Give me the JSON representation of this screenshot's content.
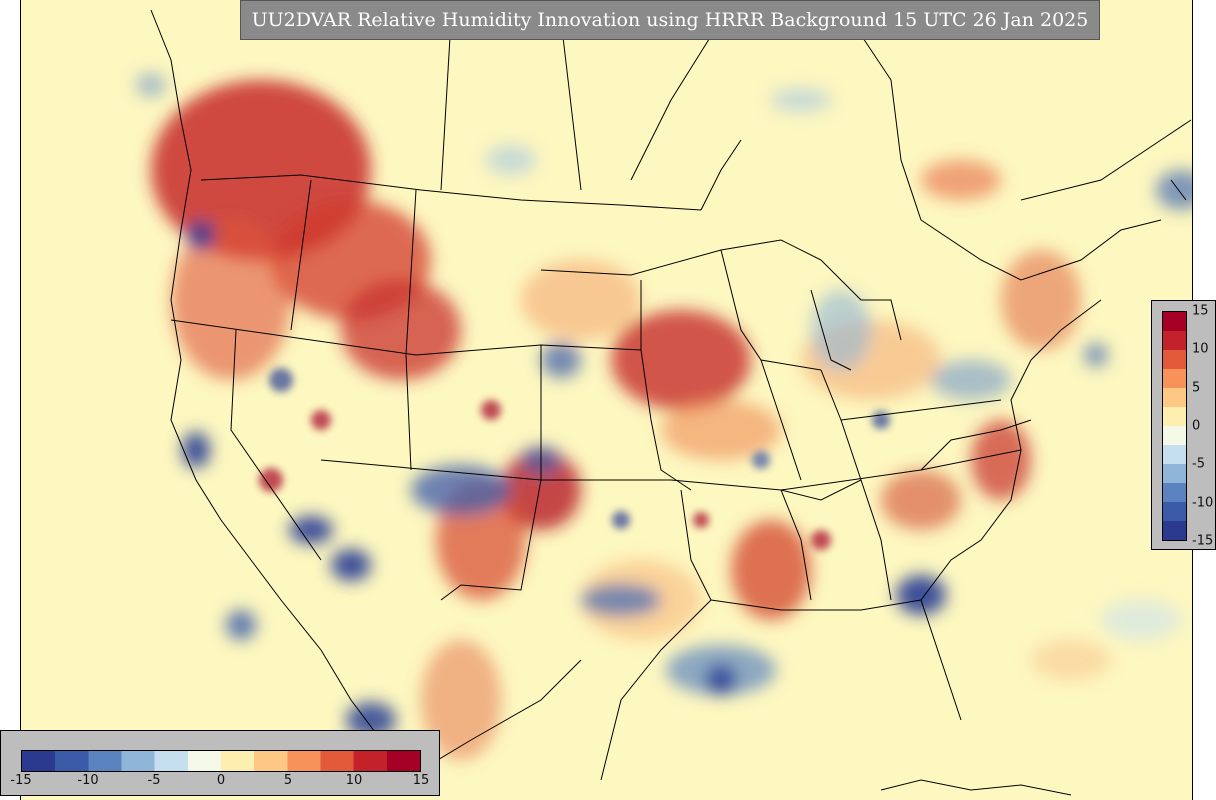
{
  "title": "UU2DVAR Relative Humidity Innovation using HRRR Background 15 UTC 26 Jan 2025",
  "colorbar": {
    "min": -15,
    "max": 15,
    "colors": [
      "#2b3a8f",
      "#3b5ba8",
      "#5a83c0",
      "#8fb5d8",
      "#c6dfee",
      "#f4f9e8",
      "#fdefb0",
      "#fcc884",
      "#f6925a",
      "#e35a3b",
      "#c4222a",
      "#a50026"
    ],
    "horizontal_ticks": [
      "-15",
      "-10",
      "-5",
      "0",
      "5",
      "10",
      "15"
    ],
    "vertical_ticks": [
      "15",
      "10",
      "5",
      "0",
      "-5",
      "-10",
      "-15"
    ]
  }
}
